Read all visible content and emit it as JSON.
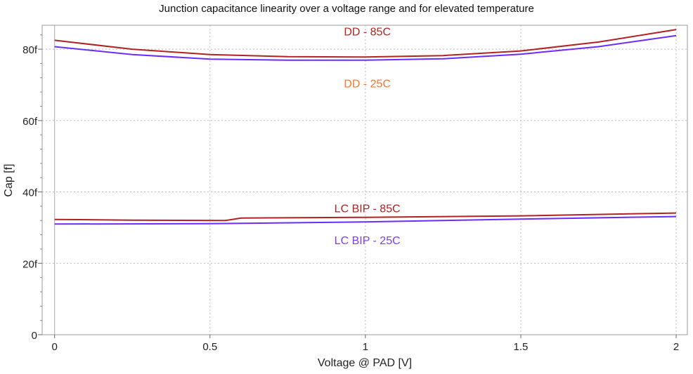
{
  "chart_data": {
    "type": "line",
    "title": "Junction capacitance linearity over a voltage range and for elevated temperature",
    "xlabel": "Voltage @ PAD [V]",
    "ylabel": "Cap [f]",
    "xlim": [
      -0.04,
      2.036
    ],
    "ylim": [
      0,
      86.7
    ],
    "xticks": [
      0,
      0.5,
      1,
      1.5,
      2
    ],
    "xtick_labels": [
      "0",
      "0.5",
      "1",
      "1.5",
      "2"
    ],
    "yticks": [
      0,
      20,
      40,
      60,
      80
    ],
    "ytick_labels": [
      "0",
      "20f",
      "40f",
      "60f",
      "80f"
    ],
    "grid": true,
    "series": [
      {
        "name": "DD - 85C",
        "color": "#b22222",
        "label_color": "#b22222",
        "x": [
          0,
          0.25,
          0.5,
          0.75,
          1.0,
          1.25,
          1.5,
          1.75,
          2.0
        ],
        "y": [
          82.5,
          80.0,
          78.5,
          77.9,
          77.8,
          78.2,
          79.5,
          82.0,
          85.5
        ]
      },
      {
        "name": "DD - 25C",
        "color": "#6a2cff",
        "label_color": "#f07830",
        "x": [
          0,
          0.25,
          0.5,
          0.75,
          1.0,
          1.25,
          1.5,
          1.75,
          2.0
        ],
        "y": [
          80.7,
          78.5,
          77.2,
          76.9,
          76.9,
          77.3,
          78.6,
          80.7,
          83.8
        ]
      },
      {
        "name": "LC BIP - 85C",
        "color": "#b22222",
        "label_color": "#b22222",
        "x": [
          0,
          0.25,
          0.55,
          0.6,
          1.0,
          1.5,
          2.0
        ],
        "y": [
          32.3,
          32.1,
          32.0,
          32.7,
          32.9,
          33.3,
          34.1
        ]
      },
      {
        "name": "LC BIP - 25C",
        "color": "#6a2cff",
        "label_color": "#7b3cff",
        "x": [
          0,
          0.5,
          1.0,
          1.5,
          2.0
        ],
        "y": [
          31.0,
          31.1,
          31.6,
          32.4,
          33.1
        ]
      }
    ]
  }
}
